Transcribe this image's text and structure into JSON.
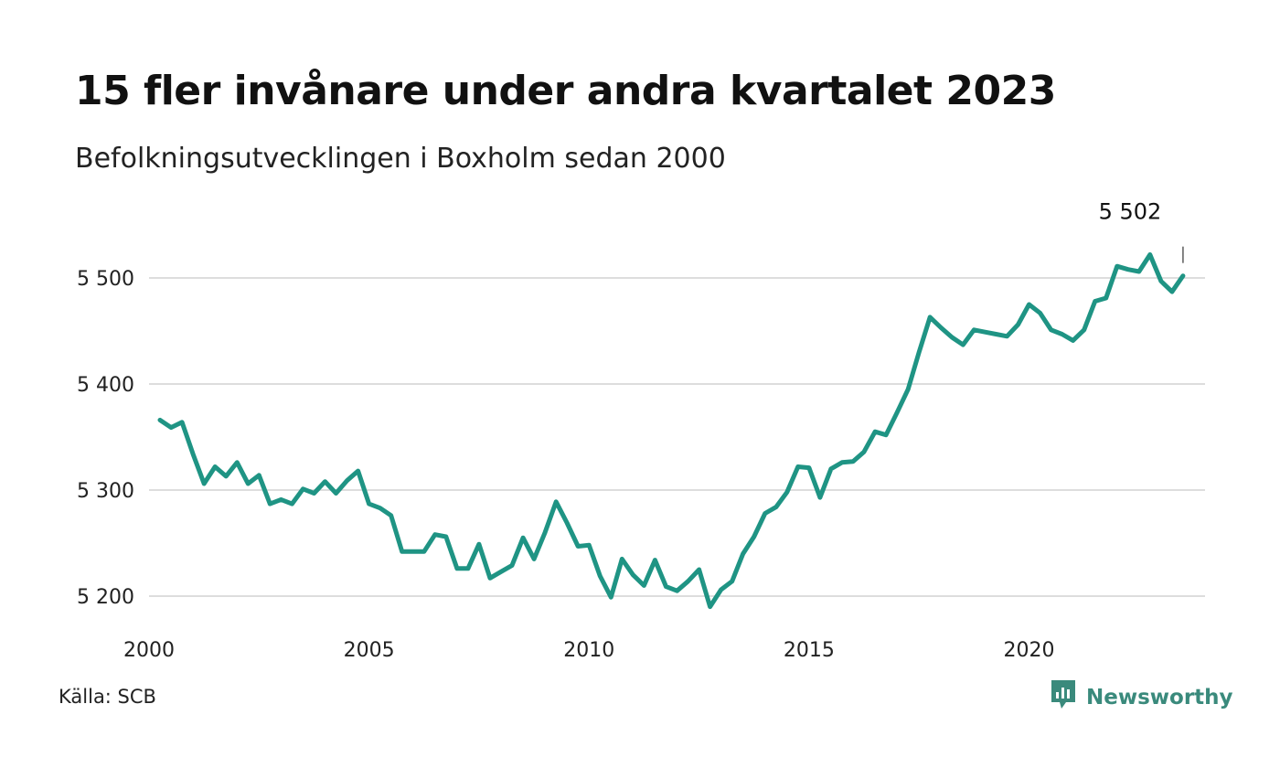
{
  "title": "15 fler invånare under andra kvartalet 2023",
  "subtitle": "Befolkningsutvecklingen i Boxholm sedan 2000",
  "source": "Källa: SCB",
  "brand": {
    "name": "Newsworthy",
    "icon": "newsworthy-logo-icon",
    "color": "#3a8a7c"
  },
  "chart_data": {
    "type": "line",
    "title": "15 fler invånare under andra kvartalet 2023",
    "subtitle": "Befolkningsutvecklingen i Boxholm sedan 2000",
    "line_color": "#1f9484",
    "grid": "horizontal",
    "xlim": [
      2000,
      2024
    ],
    "ylim": [
      5185,
      5545
    ],
    "x_ticks": [
      2000,
      2005,
      2010,
      2015,
      2020
    ],
    "x_tick_labels": [
      "2000",
      "2005",
      "2010",
      "2015",
      "2020"
    ],
    "y_ticks": [
      5200,
      5300,
      5400,
      5500
    ],
    "y_tick_labels": [
      "5 200",
      "5 300",
      "5 400",
      "5 500"
    ],
    "end_label": "5 502",
    "series": [
      {
        "x": [
          2000.25,
          2000.5,
          2000.75,
          2001,
          2001.25,
          2001.5,
          2001.75,
          2002,
          2002.25,
          2002.5,
          2002.75,
          2003,
          2003.25,
          2003.5,
          2003.75,
          2004,
          2004.25,
          2004.5,
          2004.75,
          2005,
          2005.25,
          2005.5,
          2005.75,
          2006,
          2006.25,
          2006.5,
          2006.75,
          2007,
          2007.25,
          2007.5,
          2007.75,
          2008,
          2008.25,
          2008.5,
          2008.75,
          2009,
          2009.25,
          2009.5,
          2009.75,
          2010,
          2010.25,
          2010.5,
          2010.75,
          2011,
          2011.25,
          2011.5,
          2011.75,
          2012,
          2012.25,
          2012.5,
          2012.75,
          2013,
          2013.25,
          2013.5,
          2013.75,
          2014,
          2014.25,
          2014.5,
          2014.75,
          2015,
          2015.25,
          2015.5,
          2015.75,
          2016,
          2016.25,
          2016.5,
          2016.75,
          2017,
          2017.25,
          2017.5,
          2017.75,
          2018,
          2018.25,
          2018.5,
          2018.75,
          2019,
          2019.25,
          2019.5,
          2019.75,
          2020,
          2020.25,
          2020.5,
          2020.75,
          2021,
          2021.25,
          2021.5,
          2021.75,
          2022,
          2022.25,
          2022.5,
          2022.75,
          2023,
          2023.25,
          2023.5
        ],
        "values": [
          5366,
          5359,
          5364,
          5334,
          5306,
          5322,
          5313,
          5326,
          5306,
          5314,
          5287,
          5291,
          5287,
          5301,
          5297,
          5308,
          5297,
          5309,
          5318,
          5287,
          5283,
          5276,
          5242,
          5242,
          5242,
          5258,
          5256,
          5226,
          5226,
          5249,
          5217,
          5223,
          5229,
          5255,
          5235,
          5260,
          5289,
          5269,
          5247,
          5248,
          5219,
          5199,
          5235,
          5220,
          5210,
          5234,
          5209,
          5205,
          5214,
          5225,
          5190,
          5206,
          5214,
          5240,
          5256,
          5278,
          5284,
          5298,
          5322,
          5321,
          5293,
          5320,
          5326,
          5327,
          5336,
          5355,
          5352,
          5373,
          5395,
          5430,
          5463,
          5453,
          5444,
          5437,
          5451,
          5449,
          5447,
          5445,
          5456,
          5475,
          5467,
          5451,
          5447,
          5441,
          5451,
          5478,
          5481,
          5511,
          5508,
          5506,
          5522,
          5497,
          5487,
          5502
        ]
      }
    ]
  }
}
